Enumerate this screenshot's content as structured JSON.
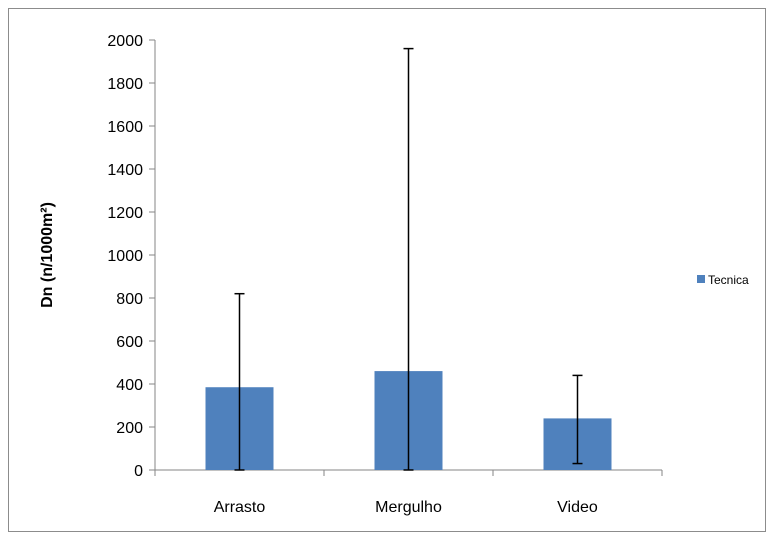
{
  "chart_data": {
    "type": "bar",
    "categories": [
      "Arrasto",
      "Mergulho",
      "Video"
    ],
    "series": [
      {
        "name": "Tecnica",
        "values": [
          385,
          460,
          240
        ],
        "error_upper": [
          820,
          1960,
          440
        ],
        "error_lower": [
          0,
          0,
          30
        ],
        "color": "#4f81bd"
      }
    ],
    "ylabel": "Dn (n/1000m²)",
    "xlabel": "",
    "ylim": [
      0,
      2000
    ],
    "yticks": [
      "0",
      "200",
      "400",
      "600",
      "800",
      "1000",
      "1200",
      "1400",
      "1600",
      "1800",
      "2000"
    ],
    "grid": false,
    "legend_position": "right"
  }
}
